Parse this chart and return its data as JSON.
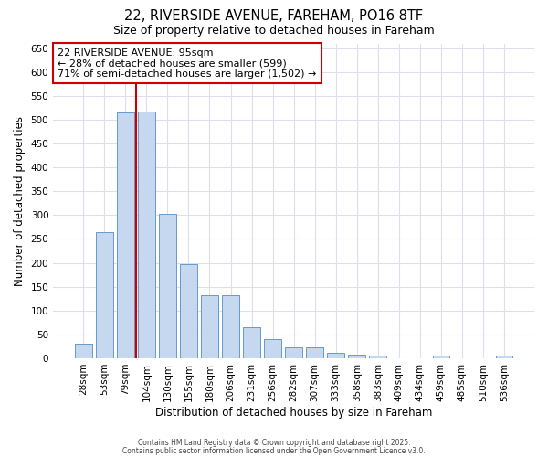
{
  "title": "22, RIVERSIDE AVENUE, FAREHAM, PO16 8TF",
  "subtitle": "Size of property relative to detached houses in Fareham",
  "xlabel": "Distribution of detached houses by size in Fareham",
  "ylabel": "Number of detached properties",
  "categories": [
    "28sqm",
    "53sqm",
    "79sqm",
    "104sqm",
    "130sqm",
    "155sqm",
    "180sqm",
    "206sqm",
    "231sqm",
    "256sqm",
    "282sqm",
    "307sqm",
    "333sqm",
    "358sqm",
    "383sqm",
    "409sqm",
    "434sqm",
    "459sqm",
    "485sqm",
    "510sqm",
    "536sqm"
  ],
  "values": [
    30,
    265,
    515,
    518,
    303,
    198,
    133,
    133,
    65,
    40,
    23,
    23,
    12,
    8,
    5,
    0,
    0,
    5,
    0,
    0,
    5
  ],
  "bar_color": "#c5d8f0",
  "bar_edge_color": "#6699cc",
  "vline_color": "#cc0000",
  "vline_position": 2.5,
  "annotation_text": "22 RIVERSIDE AVENUE: 95sqm\n← 28% of detached houses are smaller (599)\n71% of semi-detached houses are larger (1,502) →",
  "annotation_box_color": "#ffffff",
  "annotation_box_edge_color": "#cc0000",
  "ylim": [
    0,
    660
  ],
  "yticks": [
    0,
    50,
    100,
    150,
    200,
    250,
    300,
    350,
    400,
    450,
    500,
    550,
    600,
    650
  ],
  "background_color": "#ffffff",
  "grid_color": "#ddddee",
  "footer_line1": "Contains HM Land Registry data © Crown copyright and database right 2025.",
  "footer_line2": "Contains public sector information licensed under the Open Government Licence v3.0."
}
